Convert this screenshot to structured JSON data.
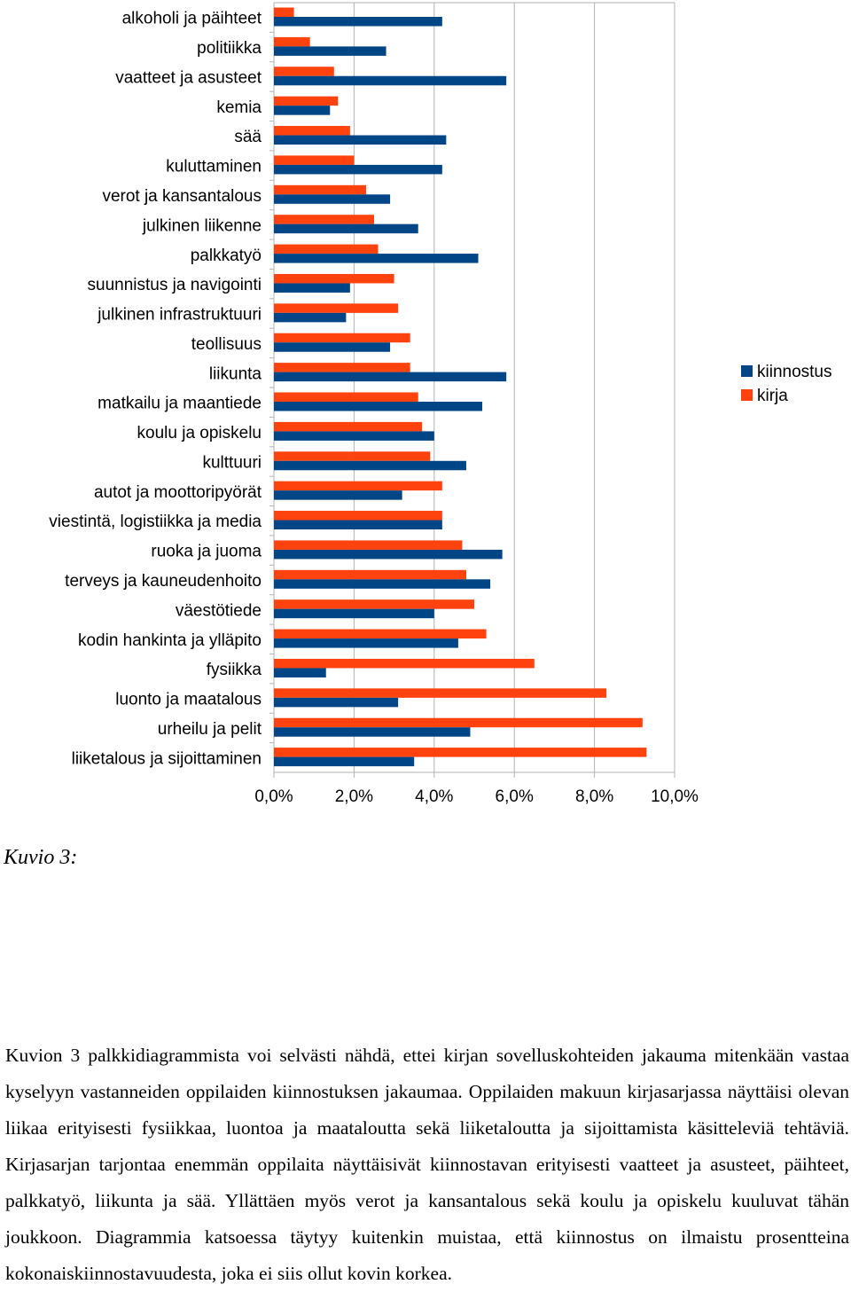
{
  "chart_data": {
    "type": "bar",
    "orientation": "horizontal",
    "categories": [
      "alkoholi ja päihteet",
      "politiikka",
      "vaatteet ja asusteet",
      "kemia",
      "sää",
      "kuluttaminen",
      "verot ja kansantalous",
      "julkinen liikenne",
      "palkkatyö",
      "suunnistus ja navigointi",
      "julkinen infrastruktuuri",
      "teollisuus",
      "liikunta",
      "matkailu ja maantiede",
      "koulu ja opiskelu",
      "kulttuuri",
      "autot ja moottoripyörät",
      "viestintä, logistiikka ja media",
      "ruoka ja juoma",
      "terveys ja kauneudenhoito",
      "väestötiede",
      "kodin hankinta ja ylläpito",
      "fysiikka",
      "luonto ja maatalous",
      "urheilu ja pelit",
      "liiketalous ja sijoittaminen"
    ],
    "series": [
      {
        "name": "kirja",
        "color": "#ff420e",
        "values": [
          0.5,
          0.9,
          1.5,
          1.6,
          1.9,
          2.0,
          2.3,
          2.5,
          2.6,
          3.0,
          3.1,
          3.4,
          3.4,
          3.6,
          3.7,
          3.9,
          4.2,
          4.2,
          4.7,
          4.8,
          5.0,
          5.3,
          6.5,
          8.3,
          9.2,
          9.3
        ]
      },
      {
        "name": "kiinnostus",
        "color": "#004586",
        "values": [
          4.2,
          2.8,
          5.8,
          1.4,
          4.3,
          4.2,
          2.9,
          3.6,
          5.1,
          1.9,
          1.8,
          2.9,
          5.8,
          5.2,
          4.0,
          4.8,
          3.2,
          4.2,
          5.7,
          5.4,
          4.0,
          4.6,
          1.3,
          3.1,
          4.9,
          3.5
        ]
      }
    ],
    "xlim": [
      0,
      10
    ],
    "x_ticks": [
      "0,0%",
      "2,0%",
      "4,0%",
      "6,0%",
      "8,0%",
      "10,0%"
    ],
    "grid": true,
    "legend": {
      "placement": "right",
      "order": [
        "kiinnostus",
        "kirja"
      ]
    }
  },
  "caption": "Kuvio 3:",
  "paragraph": "Kuvion 3 palkkidiagrammista voi selvästi nähdä, ettei kirjan sovelluskohteiden jakauma mitenkään vastaa kyselyyn vastanneiden oppilaiden kiinnostuksen jakaumaa. Oppilaiden makuun kirjasarjassa näyttäisi olevan liikaa erityisesti fysiikkaa, luontoa ja maataloutta sekä liiketaloutta ja sijoittamista käsitteleviä tehtäviä. Kirjasarjan tarjontaa enemmän oppilaita näyttäisivät kiinnostavan erityisesti vaatteet ja asusteet, päihteet, palkkatyö, liikunta ja sää. Yllättäen myös verot ja kansantalous sekä koulu ja opiskelu kuuluvat tähän joukkoon. Diagrammia katsoessa täytyy kuitenkin muistaa, että kiinnostus on ilmaistu prosentteina kokonaiskiinnostavuudesta, joka ei siis ollut kovin korkea."
}
